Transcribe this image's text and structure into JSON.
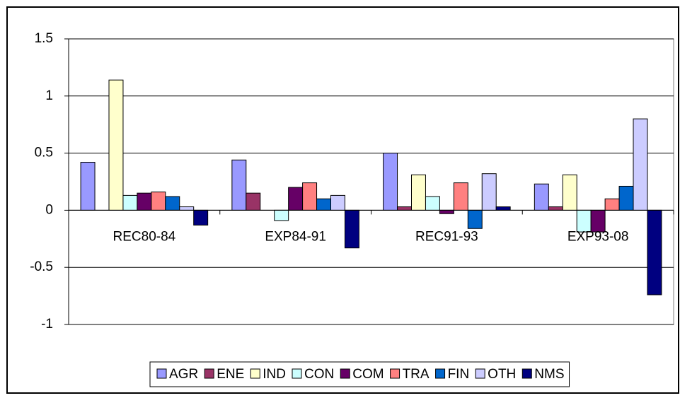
{
  "chart_data": {
    "type": "bar",
    "categories": [
      "REC80-84",
      "EXP84-91",
      "REC91-93",
      "EXP93-08"
    ],
    "series": [
      {
        "name": "AGR",
        "color": "#9999ff",
        "values": [
          0.42,
          0.44,
          0.5,
          0.23
        ]
      },
      {
        "name": "ENE",
        "color": "#993366",
        "values": [
          0,
          0.15,
          0.03,
          0.03
        ]
      },
      {
        "name": "IND",
        "color": "#ffffcc",
        "values": [
          1.14,
          0,
          0.31,
          0.31
        ]
      },
      {
        "name": "CON",
        "color": "#ccffff",
        "values": [
          0.13,
          -0.09,
          0.12,
          -0.19
        ]
      },
      {
        "name": "COM",
        "color": "#660066",
        "values": [
          0.15,
          0.2,
          -0.03,
          -0.19
        ]
      },
      {
        "name": "TRA",
        "color": "#ff8080",
        "values": [
          0.16,
          0.24,
          0.24,
          0.1
        ]
      },
      {
        "name": "FIN",
        "color": "#0066cc",
        "values": [
          0.12,
          0.1,
          -0.16,
          0.21
        ]
      },
      {
        "name": "OTH",
        "color": "#ccccff",
        "values": [
          0.03,
          0.13,
          0.32,
          0.8
        ]
      },
      {
        "name": "NMS",
        "color": "#000080",
        "values": [
          -0.13,
          -0.33,
          0.03,
          -0.74
        ]
      }
    ],
    "ylim": [
      -1,
      1.5
    ],
    "yticks": [
      -1,
      -0.5,
      0,
      0.5,
      1,
      1.5
    ],
    "grid": true
  }
}
